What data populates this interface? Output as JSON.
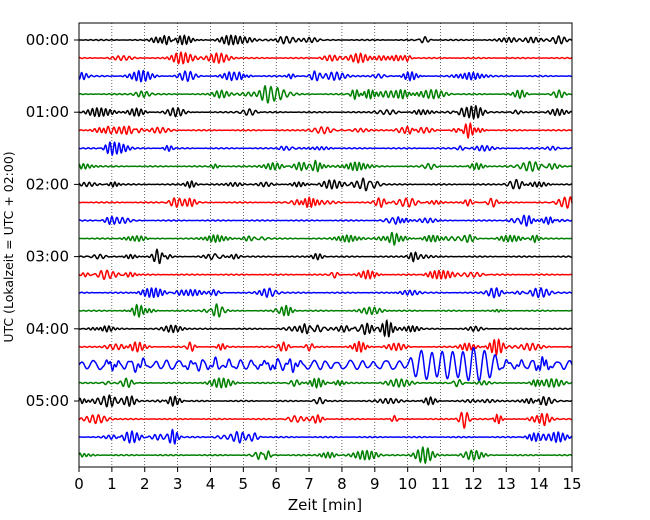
{
  "chart_data": {
    "type": "line",
    "title": "",
    "xlabel": "Zeit  [min]",
    "ylabel": "UTC (Lokalzeit = UTC + 02:00)",
    "xlim": [
      0,
      15
    ],
    "x_ticks": [
      "0",
      "1",
      "2",
      "3",
      "4",
      "5",
      "6",
      "7",
      "8",
      "9",
      "10",
      "11",
      "12",
      "13",
      "14",
      "15"
    ],
    "y_ticks": [
      "00:00",
      "01:00",
      "02:00",
      "03:00",
      "04:00",
      "05:00"
    ],
    "trace_interval_min": 15,
    "trace_count": 24,
    "trace_color_cycle": [
      "#000000",
      "#ff0000",
      "#0000ff",
      "#008000"
    ],
    "vertical_grid": "dotted",
    "legend": "none",
    "events": [
      {
        "trace": 18,
        "from_min": 0,
        "to_min": 15,
        "amplitude": "strong"
      },
      {
        "trace": 18,
        "from_min": 10,
        "to_min": 12.8,
        "amplitude": "very strong"
      }
    ]
  }
}
